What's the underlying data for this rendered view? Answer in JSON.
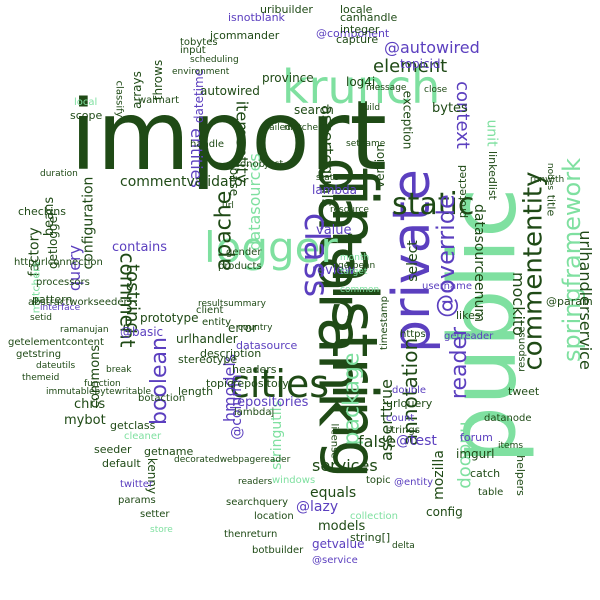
{
  "palette": {
    "dark_green": "#2f5e1f",
    "purple": "#5b3fbf",
    "mint": "#7fe0a0",
    "deep_green": "#1f4a16"
  },
  "words": {
    "import": "import",
    "public": "public",
    "finalstring": "finalstring",
    "datarank": "datarank",
    "private": "private",
    "krunch": "krunch",
    "logger": "logger",
    "cities": "cities",
    "static": "static",
    "springframework": "springframework",
    "commententity": "commententity",
    "class": "class",
    "override": "@override",
    "autowired_at": "@autowired",
    "element": "element",
    "annotation": "annotation",
    "package": "package",
    "apache": "apache",
    "comment": "comment",
    "tostring": "tostring",
    "boolean": "boolean",
    "services": "services",
    "assertequals": "assertequals",
    "itementity": "itementity",
    "datasources": "datasources",
    "entities": "entities",
    "context": "context",
    "unit": "unit",
    "reader": "reader",
    "urlhandlerservice": "urlhandlerservice",
    "hadoop": "hadoop",
    "mockito": "mockito",
    "datasourceenum": "datasourceenum",
    "asserttrue": "asserttrue",
    "false": "false",
    "equals": "equals",
    "lazy": "@lazy",
    "test": "@test",
    "config": "config",
    "mozilla": "mozilla",
    "entity_at": "@entity",
    "hmodels": "hmodels",
    "stringutils": "stringutils",
    "models": "models",
    "getvalue": "getvalue",
    "service_at": "@service",
    "column_at": "@column",
    "repositories": "repositories",
    "commentvalidator": "commentvalidator",
    "configuration": "configuration",
    "contains": "contains",
    "query": "query",
    "factory": "factory",
    "getlogger": "getlogger",
    "beans": "beans",
    "checkins": "checkins",
    "matchers": "matchers",
    "pattern": "pattern",
    "commons": "commons",
    "chris": "chris",
    "mybot": "mybot",
    "getclass": "getclass",
    "seeder": "seeder",
    "default": "default",
    "getname": "getname",
    "kenny": "kenny",
    "hbase": "hbase",
    "urlhandler": "urlhandler",
    "error": "error",
    "select": "select",
    "value": "value",
    "review": "review",
    "lambda": "lambda",
    "version": "version",
    "bytes": "bytes",
    "search": "search",
    "autowired": "autowired",
    "province": "province",
    "datetime": "datetime",
    "throws": "throws",
    "arrays": "arrays",
    "log4j": "log4j",
    "component_at": "@component",
    "capture": "capture",
    "integer": "integer",
    "canhandle": "canhandle",
    "uribuilder": "uribuilder",
    "locale": "locale",
    "isnotblank": "isnotblank",
    "topicid": "topicid",
    "linkedlist": "linkedlist",
    "protected": "protected",
    "exception": "exception",
    "title": "title",
    "param_at": "@param",
    "getreader": "getreader",
    "likes": "likes",
    "tweet": "tweet",
    "forum": "forum",
    "imgurl": "imgurl",
    "catch": "catch",
    "helpers": "helpers",
    "stringbuilder": "string[]",
    "description": "description",
    "topicrepository": "topicrepository",
    "headers": "headers",
    "urlquery": "urlquery",
    "count": "count",
    "strings": "strings",
    "double": "double",
    "https": "https",
    "prototype": "prototype",
    "basic_at": "@basic",
    "length": "length",
    "stereotype": "stereotype",
    "scope": "scope",
    "local": "local",
    "getstring": "getstring",
    "getelementcontent": "getelementcontent",
    "abstractworkseeder": "abstractworkseeder",
    "processors": "processors",
    "httpurlconnection": "httpurlconnection",
    "setid": "setid",
    "ramanujan": "ramanujan",
    "datanode": "datanode",
    "table": "table",
    "response": "response",
    "timestamp": "timestamp",
    "username": "username",
    "entity": "entity",
    "client": "client",
    "country": "country",
    "products": "products",
    "gender": "gender",
    "failed": "failed",
    "matcher": "matcher",
    "message": "message",
    "close": "close",
    "build": "build",
    "jcommander": "jcommander",
    "input": "input",
    "environment": "environment",
    "scheduling": "scheduling",
    "tobytes": "tobytes",
    "cleaner": "cleaner",
    "decoratedwebpagereader": "decoratedwebpagereader",
    "theneturn": "thenreturn",
    "location": "location",
    "searchquery": "searchquery",
    "botbuilder": "botbuilder",
    "twitter": "twitter",
    "params": "params",
    "setter": "setter",
    "store": "store",
    "delta": "delta",
    "items": "items",
    "botaction": "botaction",
    "readers": "readers",
    "resultsummary": "resultsummary",
    "datasource": "datasource",
    "lambdaj": "lambdaj",
    "collection": "collection",
    "windows": "windows",
    "topic": "topic",
    "license": "license",
    "getbean": "getbean",
    "walmart": "walmart",
    "classify": "classify",
    "handle": "handle",
    "jsonobject": "jsonobject",
    "statelog": "state",
    "setname": "setname",
    "resource": "resource",
    "common": "common",
    "month": "month",
    "target": "target",
    "runwith": "runwith",
    "interface": "interface",
    "immutablebytewritable": "immutablebytewritable",
    "function": "function",
    "duration": "duration",
    "break": "break",
    "dateutils": "dateutils",
    "themeid": "themeid",
    "nodes": "nodes",
    "url": "url"
  }
}
